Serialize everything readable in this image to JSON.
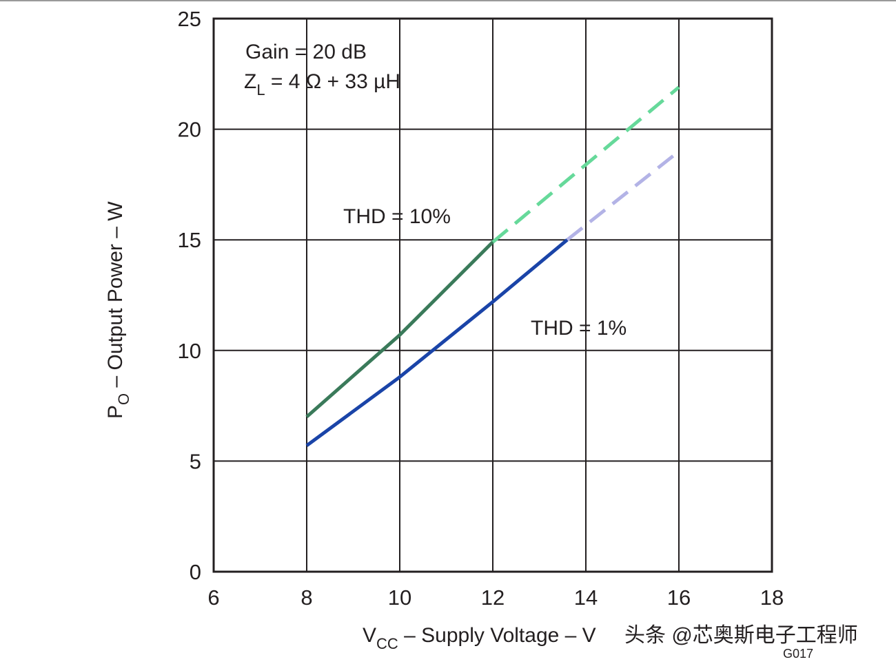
{
  "chart_data": {
    "type": "line",
    "annotations": {
      "gain": "Gain = 20 dB",
      "load": {
        "main": "Z",
        "sub": "L",
        "rest": " = 4 Ω + 33 µH"
      },
      "thd10": "THD = 10%",
      "thd1": "THD = 1%"
    },
    "x_label": {
      "main": "V",
      "sub": "CC",
      "rest": " – Supply Voltage – V"
    },
    "y_label": {
      "main": "P",
      "sub": "O",
      "rest": " – Output Power – W"
    },
    "watermark": "头条 @芯奥斯电子工程师",
    "figure_id": "G017",
    "xlim": [
      6,
      18
    ],
    "xticks": [
      6,
      8,
      10,
      12,
      14,
      16,
      18
    ],
    "ylim": [
      0,
      25
    ],
    "yticks": [
      0,
      5,
      10,
      15,
      20,
      25
    ],
    "grid": true,
    "series": [
      {
        "name": "THD = 10%",
        "segments": [
          {
            "x": [
              8,
              10,
              12
            ],
            "values": [
              7.0,
              10.7,
              14.9
            ],
            "color": "#3a7a5a",
            "dashed": false
          },
          {
            "x": [
              12,
              16
            ],
            "values": [
              14.9,
              21.9
            ],
            "color": "#66d99a",
            "dashed": true
          }
        ]
      },
      {
        "name": "THD = 1%",
        "segments": [
          {
            "x": [
              8,
              10,
              12,
              13.6
            ],
            "values": [
              5.7,
              8.8,
              12.2,
              15.0
            ],
            "color": "#1a44a8",
            "dashed": false
          },
          {
            "x": [
              13.6,
              16
            ],
            "values": [
              15.0,
              19.0
            ],
            "color": "#b3b3e6",
            "dashed": true
          }
        ]
      }
    ]
  }
}
